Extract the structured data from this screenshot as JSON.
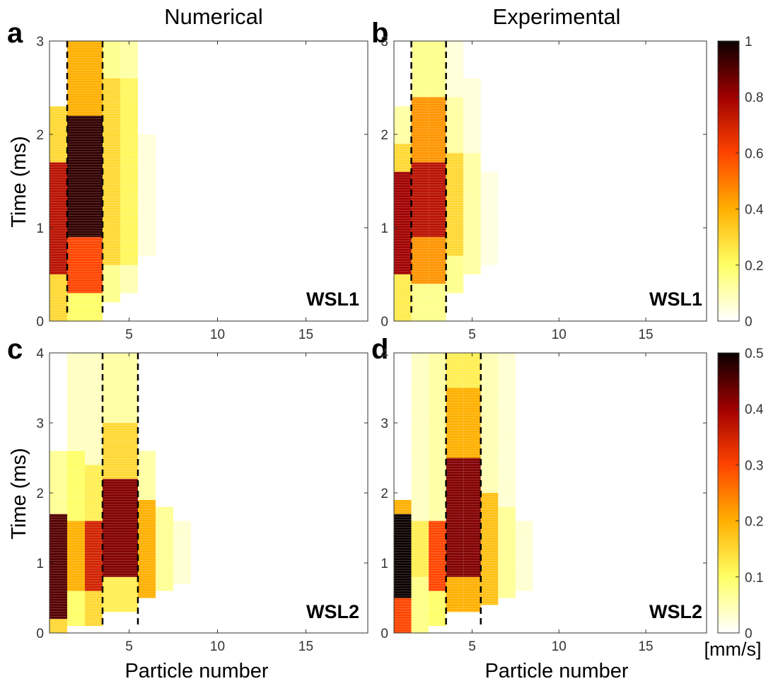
{
  "column_titles": [
    "Numerical",
    "Experimental"
  ],
  "units_label": "[mm/s]",
  "chart_data": [
    {
      "id": "a",
      "panel_letter": "a",
      "tag": "WSL1",
      "type": "heatmap",
      "xlabel": "",
      "ylabel": "Time (ms)",
      "xlim": [
        0.5,
        18.5
      ],
      "ylim": [
        0,
        3
      ],
      "xticks": [
        5,
        10,
        15
      ],
      "yticks": [
        0,
        1,
        2,
        3
      ],
      "clim": [
        0,
        1
      ],
      "dashed_lines_x": [
        1.5,
        3.5
      ],
      "columns": [
        {
          "particle": 1,
          "ranges": [
            [
              0.0,
              0.5,
              0.3
            ],
            [
              0.5,
              1.7,
              0.75
            ],
            [
              1.7,
              2.3,
              0.3
            ]
          ]
        },
        {
          "particle": 2,
          "ranges": [
            [
              0.0,
              0.3,
              0.2
            ],
            [
              0.3,
              0.9,
              0.6
            ],
            [
              0.9,
              2.2,
              0.95
            ],
            [
              2.2,
              3.0,
              0.4
            ]
          ]
        },
        {
          "particle": 3,
          "ranges": [
            [
              0.0,
              0.3,
              0.2
            ],
            [
              0.3,
              0.9,
              0.6
            ],
            [
              0.9,
              2.2,
              0.95
            ],
            [
              2.2,
              3.0,
              0.4
            ]
          ]
        },
        {
          "particle": 4,
          "ranges": [
            [
              0.2,
              0.6,
              0.15
            ],
            [
              0.6,
              2.6,
              0.3
            ],
            [
              2.6,
              3.0,
              0.15
            ]
          ]
        },
        {
          "particle": 5,
          "ranges": [
            [
              0.3,
              0.6,
              0.1
            ],
            [
              0.6,
              2.6,
              0.22
            ],
            [
              2.6,
              3.0,
              0.12
            ]
          ]
        },
        {
          "particle": 6,
          "ranges": [
            [
              0.7,
              2.0,
              0.05
            ]
          ]
        }
      ]
    },
    {
      "id": "b",
      "panel_letter": "b",
      "tag": "WSL1",
      "type": "heatmap",
      "xlabel": "",
      "ylabel": "",
      "xlim": [
        0.5,
        18.5
      ],
      "ylim": [
        0,
        3
      ],
      "xticks": [
        5,
        10,
        15
      ],
      "yticks": [
        0,
        1,
        2,
        3
      ],
      "clim": [
        0,
        1
      ],
      "dashed_lines_x": [
        1.5,
        3.5
      ],
      "columns": [
        {
          "particle": 1,
          "ranges": [
            [
              0.0,
              0.5,
              0.25
            ],
            [
              0.5,
              1.6,
              0.8
            ],
            [
              1.6,
              1.9,
              0.3
            ],
            [
              1.9,
              2.3,
              0.12
            ]
          ]
        },
        {
          "particle": 2,
          "ranges": [
            [
              0.0,
              0.4,
              0.15
            ],
            [
              0.4,
              0.9,
              0.45
            ],
            [
              0.9,
              1.7,
              0.75
            ],
            [
              1.7,
              2.4,
              0.45
            ],
            [
              2.4,
              3.0,
              0.15
            ]
          ]
        },
        {
          "particle": 3,
          "ranges": [
            [
              0.0,
              0.4,
              0.15
            ],
            [
              0.4,
              0.9,
              0.45
            ],
            [
              0.9,
              1.7,
              0.75
            ],
            [
              1.7,
              2.4,
              0.45
            ],
            [
              2.4,
              3.0,
              0.15
            ]
          ]
        },
        {
          "particle": 4,
          "ranges": [
            [
              0.3,
              0.7,
              0.15
            ],
            [
              0.7,
              1.8,
              0.3
            ],
            [
              1.8,
              2.4,
              0.12
            ],
            [
              2.4,
              3.0,
              0.05
            ]
          ]
        },
        {
          "particle": 5,
          "ranges": [
            [
              0.5,
              1.8,
              0.12
            ],
            [
              1.8,
              2.6,
              0.05
            ]
          ]
        },
        {
          "particle": 6,
          "ranges": [
            [
              0.6,
              1.6,
              0.04
            ]
          ]
        }
      ]
    },
    {
      "id": "c",
      "panel_letter": "c",
      "tag": "WSL2",
      "type": "heatmap",
      "xlabel": "Particle number",
      "ylabel": "Time (ms)",
      "xlim": [
        0.5,
        18.5
      ],
      "ylim": [
        0,
        4
      ],
      "xticks": [
        5,
        10,
        15
      ],
      "yticks": [
        0,
        1,
        2,
        3,
        4
      ],
      "clim": [
        0,
        0.5
      ],
      "dashed_lines_x": [
        3.5,
        5.5
      ],
      "columns": [
        {
          "particle": 1,
          "ranges": [
            [
              0.0,
              0.2,
              0.15
            ],
            [
              0.2,
              1.7,
              0.45
            ],
            [
              1.7,
              2.6,
              0.07
            ]
          ]
        },
        {
          "particle": 2,
          "ranges": [
            [
              0.1,
              0.6,
              0.1
            ],
            [
              0.6,
              1.6,
              0.2
            ],
            [
              1.6,
              2.6,
              0.1
            ],
            [
              2.6,
              4.0,
              0.04
            ]
          ]
        },
        {
          "particle": 3,
          "ranges": [
            [
              0.1,
              0.6,
              0.15
            ],
            [
              0.6,
              1.6,
              0.35
            ],
            [
              1.6,
              2.4,
              0.12
            ],
            [
              2.4,
              4.0,
              0.04
            ]
          ]
        },
        {
          "particle": 4,
          "ranges": [
            [
              0.3,
              0.8,
              0.12
            ],
            [
              0.8,
              2.2,
              0.42
            ],
            [
              2.2,
              3.0,
              0.15
            ],
            [
              3.0,
              4.0,
              0.06
            ]
          ]
        },
        {
          "particle": 5,
          "ranges": [
            [
              0.3,
              0.8,
              0.12
            ],
            [
              0.8,
              2.2,
              0.42
            ],
            [
              2.2,
              3.0,
              0.15
            ],
            [
              3.0,
              4.0,
              0.06
            ]
          ]
        },
        {
          "particle": 6,
          "ranges": [
            [
              0.5,
              1.9,
              0.2
            ],
            [
              1.9,
              2.6,
              0.06
            ]
          ]
        },
        {
          "particle": 7,
          "ranges": [
            [
              0.6,
              1.8,
              0.07
            ]
          ]
        },
        {
          "particle": 8,
          "ranges": [
            [
              0.7,
              1.6,
              0.03
            ]
          ]
        }
      ]
    },
    {
      "id": "d",
      "panel_letter": "d",
      "tag": "WSL2",
      "type": "heatmap",
      "xlabel": "Particle number",
      "ylabel": "",
      "xlim": [
        0.5,
        18.5
      ],
      "ylim": [
        0,
        4
      ],
      "xticks": [
        5,
        10,
        15
      ],
      "yticks": [
        0,
        1,
        2,
        3,
        4
      ],
      "clim": [
        0,
        0.5
      ],
      "dashed_lines_x": [
        3.5,
        5.5
      ],
      "columns": [
        {
          "particle": 1,
          "ranges": [
            [
              0.0,
              0.5,
              0.3
            ],
            [
              0.5,
              1.7,
              0.5
            ],
            [
              1.7,
              1.9,
              0.2
            ]
          ]
        },
        {
          "particle": 2,
          "ranges": [
            [
              0.0,
              0.8,
              0.08
            ],
            [
              0.8,
              1.6,
              0.12
            ],
            [
              1.6,
              4.0,
              0.04
            ]
          ]
        },
        {
          "particle": 3,
          "ranges": [
            [
              0.1,
              0.6,
              0.1
            ],
            [
              0.6,
              1.6,
              0.3
            ],
            [
              1.6,
              4.0,
              0.06
            ]
          ]
        },
        {
          "particle": 4,
          "ranges": [
            [
              0.3,
              0.8,
              0.2
            ],
            [
              0.8,
              2.5,
              0.42
            ],
            [
              2.5,
              3.5,
              0.2
            ],
            [
              3.5,
              4.0,
              0.12
            ]
          ]
        },
        {
          "particle": 5,
          "ranges": [
            [
              0.3,
              0.8,
              0.2
            ],
            [
              0.8,
              2.5,
              0.42
            ],
            [
              2.5,
              3.5,
              0.2
            ],
            [
              3.5,
              4.0,
              0.12
            ]
          ]
        },
        {
          "particle": 6,
          "ranges": [
            [
              0.4,
              2.0,
              0.18
            ],
            [
              2.0,
              4.0,
              0.05
            ]
          ]
        },
        {
          "particle": 7,
          "ranges": [
            [
              0.5,
              1.8,
              0.07
            ],
            [
              1.8,
              4.0,
              0.03
            ]
          ]
        },
        {
          "particle": 8,
          "ranges": [
            [
              0.6,
              1.6,
              0.03
            ]
          ]
        }
      ]
    }
  ],
  "colorbars": [
    {
      "for": "top",
      "colormap": "hot",
      "min": 0,
      "max": 1,
      "ticks": [
        "0",
        "0.2",
        "0.4",
        "0.6",
        "0.8",
        "1"
      ]
    },
    {
      "for": "bottom",
      "colormap": "hot",
      "min": 0,
      "max": 0.5,
      "ticks": [
        "0",
        "0.1",
        "0.2",
        "0.3",
        "0.4",
        "0.5"
      ]
    }
  ]
}
